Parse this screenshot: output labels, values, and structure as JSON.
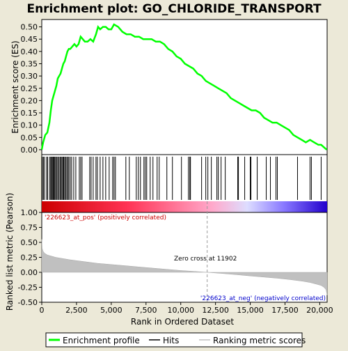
{
  "chart_data": {
    "type": "line",
    "title": "Enrichment plot: GO_CHLORIDE_TRANSPORT",
    "xlabel": "Rank in Ordered Dataset",
    "top_panel": {
      "ylabel": "Enrichment score (ES)",
      "ylim": [
        -0.02,
        0.53
      ],
      "yticks": [
        0.0,
        0.05,
        0.1,
        0.15,
        0.2,
        0.25,
        0.3,
        0.35,
        0.4,
        0.45,
        0.5
      ],
      "ytick_labels": [
        "0.00",
        "0.05",
        "0.10",
        "0.15",
        "0.20",
        "0.25",
        "0.30",
        "0.35",
        "0.40",
        "0.45",
        "0.50"
      ],
      "series": [
        {
          "name": "Enrichment profile",
          "color": "#00ff00",
          "x": [
            0,
            100,
            250,
            400,
            550,
            650,
            750,
            850,
            950,
            1050,
            1150,
            1250,
            1350,
            1450,
            1550,
            1650,
            1750,
            1850,
            1950,
            2050,
            2200,
            2350,
            2500,
            2650,
            2800,
            2950,
            3100,
            3300,
            3500,
            3700,
            3900,
            4050,
            4200,
            4400,
            4600,
            4800,
            5000,
            5200,
            5500,
            5800,
            6100,
            6400,
            6700,
            7000,
            7300,
            7600,
            7900,
            8200,
            8500,
            8800,
            9100,
            9400,
            9700,
            10000,
            10300,
            10600,
            10900,
            11200,
            11500,
            11800,
            12100,
            12400,
            12700,
            13000,
            13300,
            13600,
            13900,
            14200,
            14500,
            14800,
            15100,
            15400,
            15700,
            16000,
            16300,
            16600,
            16900,
            17200,
            17500,
            17800,
            18100,
            18400,
            18700,
            19000,
            19300,
            19600,
            19900,
            20100,
            20300,
            20500
          ],
          "y": [
            0.0,
            0.03,
            0.06,
            0.07,
            0.11,
            0.16,
            0.2,
            0.22,
            0.24,
            0.26,
            0.29,
            0.3,
            0.31,
            0.33,
            0.35,
            0.36,
            0.38,
            0.4,
            0.41,
            0.41,
            0.42,
            0.43,
            0.42,
            0.43,
            0.46,
            0.45,
            0.44,
            0.44,
            0.45,
            0.44,
            0.47,
            0.5,
            0.49,
            0.5,
            0.5,
            0.49,
            0.49,
            0.51,
            0.5,
            0.48,
            0.47,
            0.47,
            0.46,
            0.46,
            0.45,
            0.45,
            0.45,
            0.44,
            0.44,
            0.43,
            0.41,
            0.4,
            0.38,
            0.37,
            0.35,
            0.34,
            0.33,
            0.31,
            0.3,
            0.28,
            0.27,
            0.26,
            0.25,
            0.24,
            0.23,
            0.21,
            0.2,
            0.19,
            0.18,
            0.17,
            0.16,
            0.16,
            0.15,
            0.13,
            0.12,
            0.11,
            0.11,
            0.1,
            0.09,
            0.08,
            0.06,
            0.05,
            0.04,
            0.03,
            0.04,
            0.03,
            0.02,
            0.02,
            0.01,
            0.0
          ]
        }
      ]
    },
    "hits_panel": {
      "hit_ranks": [
        40,
        120,
        200,
        350,
        420,
        560,
        640,
        700,
        760,
        820,
        880,
        940,
        1000,
        1080,
        1150,
        1230,
        1310,
        1380,
        1450,
        1520,
        1580,
        1650,
        1720,
        1800,
        1880,
        1950,
        2050,
        2150,
        2300,
        2450,
        2700,
        2800,
        2900,
        3450,
        3550,
        3700,
        3900,
        4000,
        4200,
        4400,
        4600,
        4850,
        5100,
        5200,
        5300,
        6050,
        6300,
        6800,
        6950,
        7100,
        7350,
        7450,
        7550,
        7800,
        8000,
        8300,
        8450,
        9000,
        9400,
        10050,
        10550,
        10650,
        10700,
        11500,
        11800,
        11950,
        12200,
        12600,
        12700,
        12900,
        13200,
        14100,
        14150,
        14600,
        15000,
        15050,
        15500,
        16150,
        16450,
        16850,
        16950,
        18400,
        19300,
        19400,
        20100
      ]
    },
    "bottom_panel": {
      "ylabel": "Ranked list metric (Pearson)",
      "ylim": [
        -0.5,
        1.0
      ],
      "yticks": [
        -0.5,
        -0.25,
        0.0,
        0.25,
        0.5,
        0.75,
        1.0
      ],
      "ytick_labels": [
        "-0.50",
        "-0.25",
        "0.00",
        "0.25",
        "0.50",
        "0.75",
        "1.00"
      ],
      "series": [
        {
          "name": "Ranking metric scores",
          "color": "#c0c0c0",
          "x": [
            0,
            30,
            100,
            200,
            400,
            700,
            1000,
            1500,
            2000,
            3000,
            4000,
            5000,
            6000,
            7000,
            8000,
            9000,
            10000,
            11000,
            11902,
            13000,
            14000,
            15000,
            16000,
            17000,
            18000,
            18800,
            19300,
            19800,
            20100,
            20300,
            20450,
            20530
          ],
          "y": [
            0.55,
            0.4,
            0.35,
            0.32,
            0.29,
            0.27,
            0.25,
            0.23,
            0.21,
            0.18,
            0.15,
            0.13,
            0.11,
            0.09,
            0.07,
            0.05,
            0.03,
            0.015,
            0.0,
            -0.02,
            -0.04,
            -0.06,
            -0.08,
            -0.1,
            -0.125,
            -0.15,
            -0.17,
            -0.2,
            -0.22,
            -0.25,
            -0.29,
            -0.38
          ]
        }
      ],
      "zero_cross_rank": 11902,
      "annotations": {
        "zero_cross": "Zero cross at 11902",
        "pos_label": "'226623_at_pos' (positively correlated)",
        "neg_label": "'226623_at_neg' (negatively correlated)"
      },
      "pos_label_color": "#cc0000",
      "neg_label_color": "#0000cc"
    },
    "xlim": [
      0,
      20530
    ],
    "xticks": [
      0,
      2500,
      5000,
      7500,
      10000,
      12500,
      15000,
      17500,
      20000
    ],
    "xtick_labels": [
      "0",
      "2,500",
      "5,000",
      "7,500",
      "10,000",
      "12,500",
      "15,000",
      "17,500",
      "20,000"
    ],
    "legend": {
      "placement": "bottom",
      "entries": [
        {
          "label": "Enrichment profile",
          "color": "#00ff00"
        },
        {
          "label": "Hits",
          "color": "#000000"
        },
        {
          "label": "Ranking metric scores",
          "color": "#c0c0c0"
        }
      ]
    },
    "colors": {
      "background": "#ece9d8",
      "plot_bg": "#ffffff",
      "gradient_stops": [
        "#cc0000",
        "#ff3355",
        "#ffaacc",
        "#ddddff",
        "#8877ff",
        "#2200cc"
      ]
    }
  }
}
